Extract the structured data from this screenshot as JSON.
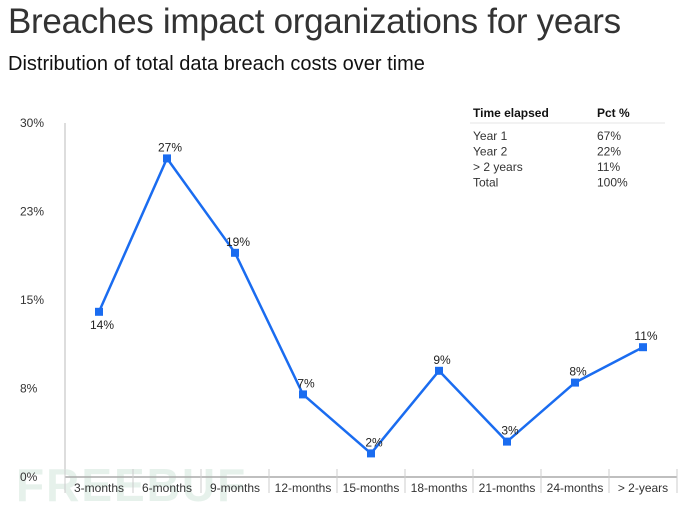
{
  "header": {
    "title": "Breaches impact organizations for years",
    "subtitle": "Distribution of total data breach costs over time"
  },
  "watermark": "FREEBUF",
  "summary_table": {
    "headers": [
      "Time elapsed",
      "Pct %"
    ],
    "rows": [
      [
        "Year 1",
        "67%"
      ],
      [
        "Year 2",
        "22%"
      ],
      [
        "> 2 years",
        "11%"
      ],
      [
        "Total",
        "100%"
      ]
    ]
  },
  "chart_data": {
    "type": "line",
    "title": "Distribution of total data breach costs over time",
    "xlabel": "",
    "ylabel": "",
    "categories": [
      "3-months",
      "6-months",
      "9-months",
      "12-months",
      "15-months",
      "18-months",
      "21-months",
      "24-months",
      "> 2-years"
    ],
    "values": [
      14,
      27,
      19,
      7,
      2,
      9,
      3,
      8,
      11
    ],
    "labels": [
      "14%",
      "27%",
      "19%",
      "7%",
      "2%",
      "9%",
      "3%",
      "8%",
      "11%"
    ],
    "label_position": [
      "below",
      "above",
      "above",
      "above",
      "above",
      "above",
      "above",
      "above",
      "above"
    ],
    "yticks": [
      0,
      7.5,
      15,
      22.5,
      30
    ],
    "ytick_labels": [
      "0%",
      "8%",
      "15%",
      "23%",
      "30%"
    ],
    "ylim": [
      0,
      30
    ],
    "grid": false,
    "color": "#1a6cf0"
  }
}
